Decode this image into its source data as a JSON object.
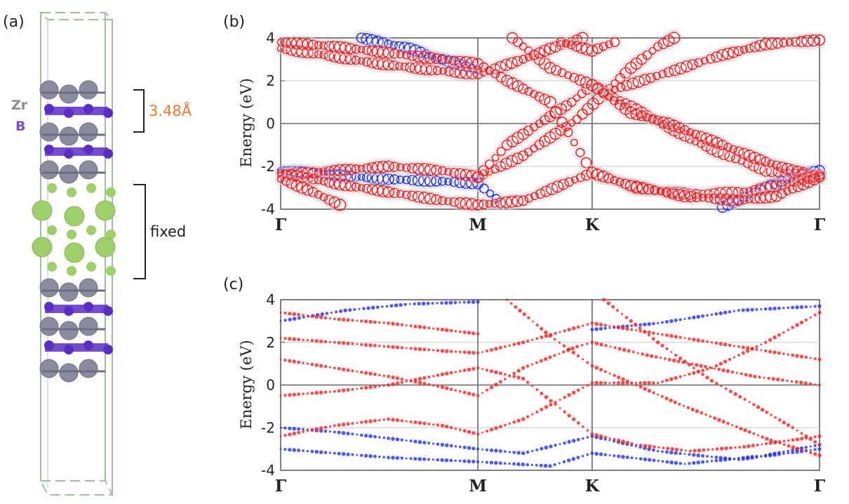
{
  "panel_a": {
    "label": "(a)",
    "atoms": [
      {
        "symbol": "Zr",
        "color": "#8a8a9a"
      },
      {
        "symbol": "B",
        "color": "#7a4fc4"
      }
    ],
    "dimension": {
      "text": "3.48Å",
      "color": "#f07a2a"
    },
    "fixed_label": "fixed",
    "colors": {
      "zr": "#8b8b9e",
      "b": "#5a2dc8",
      "substrate": "#9ecf6a",
      "cell": "#9cc29c"
    }
  },
  "chart_data": [
    {
      "panel": "(b)",
      "type": "scatter",
      "ylabel": "Energy (eV)",
      "ylim": [
        -4,
        4
      ],
      "y_ticks": [
        "4",
        "2",
        "0",
        "-2",
        "-4"
      ],
      "x_ticks": [
        "Γ",
        "M",
        "K",
        "Γ"
      ],
      "series_colors": {
        "spin_up": "#ff2020",
        "spin_down": "#2030ff",
        "halo": "#c8c8d2"
      },
      "bands_up": [
        {
          "name": "dirac-1",
          "points": [
            [
              0.0,
              -2.4
            ],
            [
              0.1,
              -2.2
            ],
            [
              0.2,
              -2.0
            ],
            [
              0.3,
              -2.2
            ],
            [
              0.366,
              -2.5
            ],
            [
              0.45,
              -1.5
            ],
            [
              0.55,
              0.2
            ],
            [
              0.6,
              1.4
            ],
            [
              0.65,
              2.6
            ],
            [
              0.7,
              3.6
            ],
            [
              0.73,
              4.0
            ]
          ]
        },
        {
          "name": "dirac-2",
          "points": [
            [
              0.366,
              -2.5
            ],
            [
              0.42,
              -1.0
            ],
            [
              0.48,
              0.0
            ],
            [
              0.54,
              1.0
            ],
            [
              0.578,
              1.8
            ],
            [
              0.65,
              0.8
            ],
            [
              0.72,
              -0.2
            ],
            [
              0.8,
              -1.2
            ],
            [
              0.9,
              -2.2
            ],
            [
              1.0,
              -2.5
            ]
          ]
        },
        {
          "name": "dirac-3",
          "points": [
            [
              0.43,
              4.0
            ],
            [
              0.5,
              2.6
            ],
            [
              0.578,
              1.8
            ],
            [
              0.65,
              0.5
            ],
            [
              0.72,
              0.0
            ],
            [
              0.8,
              -0.8
            ],
            [
              0.88,
              -1.6
            ],
            [
              0.95,
              -2.2
            ],
            [
              1.0,
              -2.4
            ]
          ]
        },
        {
          "name": "upper-1",
          "points": [
            [
              0.0,
              3.5
            ],
            [
              0.08,
              3.2
            ],
            [
              0.18,
              2.8
            ],
            [
              0.28,
              2.5
            ],
            [
              0.366,
              2.3
            ],
            [
              0.45,
              3.0
            ],
            [
              0.5,
              3.5
            ],
            [
              0.56,
              4.0
            ]
          ]
        },
        {
          "name": "upper-2",
          "points": [
            [
              0.0,
              3.8
            ],
            [
              0.1,
              3.6
            ],
            [
              0.2,
              3.3
            ],
            [
              0.3,
              3.0
            ],
            [
              0.366,
              2.8
            ],
            [
              0.42,
              2.0
            ],
            [
              0.5,
              1.0
            ],
            [
              0.578,
              -2.3
            ],
            [
              0.66,
              -3.0
            ],
            [
              0.76,
              -3.3
            ],
            [
              0.86,
              -3.2
            ],
            [
              0.94,
              -2.8
            ],
            [
              1.0,
              -2.4
            ]
          ]
        },
        {
          "name": "upper-3",
          "points": [
            [
              0.52,
              3.8
            ],
            [
              0.578,
              3.4
            ],
            [
              0.62,
              3.8
            ]
          ]
        },
        {
          "name": "upper-4",
          "points": [
            [
              0.62,
              1.6
            ],
            [
              0.72,
              2.4
            ],
            [
              0.82,
              3.2
            ],
            [
              0.9,
              3.7
            ],
            [
              1.0,
              3.9
            ]
          ]
        },
        {
          "name": "lower-1",
          "points": [
            [
              0.0,
              -2.3
            ],
            [
              0.1,
              -2.8
            ],
            [
              0.2,
              -3.2
            ],
            [
              0.3,
              -3.6
            ],
            [
              0.366,
              -3.8
            ],
            [
              0.45,
              -3.6
            ],
            [
              0.578,
              -2.3
            ],
            [
              0.65,
              -2.9
            ],
            [
              0.75,
              -3.4
            ],
            [
              0.85,
              -3.6
            ],
            [
              0.92,
              -3.4
            ],
            [
              1.0,
              -2.5
            ]
          ]
        },
        {
          "name": "lower-2",
          "points": [
            [
              0.0,
              -2.6
            ],
            [
              0.06,
              -3.2
            ],
            [
              0.11,
              -3.8
            ]
          ]
        }
      ],
      "bands_down": [
        {
          "name": "d-1",
          "points": [
            [
              0.0,
              -2.2
            ],
            [
              0.1,
              -2.4
            ],
            [
              0.2,
              -2.6
            ],
            [
              0.3,
              -2.7
            ],
            [
              0.366,
              -2.8
            ],
            [
              0.4,
              -3.5
            ]
          ]
        },
        {
          "name": "d-2",
          "points": [
            [
              0.15,
              4.0
            ],
            [
              0.24,
              3.5
            ],
            [
              0.3,
              3.0
            ],
            [
              0.366,
              2.5
            ]
          ]
        },
        {
          "name": "d-3",
          "points": [
            [
              0.82,
              -3.9
            ],
            [
              0.88,
              -3.2
            ],
            [
              0.94,
              -2.6
            ],
            [
              1.0,
              -2.2
            ]
          ]
        }
      ]
    },
    {
      "panel": "(c)",
      "type": "scatter",
      "ylabel": "Energy (eV)",
      "ylim": [
        -4,
        4
      ],
      "y_ticks": [
        "4",
        "2",
        "0",
        "-2",
        "-4"
      ],
      "x_ticks": [
        "Γ",
        "M",
        "K",
        "Γ"
      ],
      "series_colors": {
        "spin_up": "#ff2020",
        "spin_down": "#2030ff",
        "halo": "#c8c8d2"
      },
      "bands_up": [
        {
          "name": "c-1",
          "points": [
            [
              0.0,
              3.4
            ],
            [
              0.1,
              3.1
            ],
            [
              0.2,
              2.9
            ],
            [
              0.3,
              2.6
            ],
            [
              0.366,
              2.4
            ]
          ]
        },
        {
          "name": "c-2",
          "points": [
            [
              0.0,
              -2.4
            ],
            [
              0.1,
              -1.9
            ],
            [
              0.2,
              -1.6
            ],
            [
              0.3,
              -1.9
            ],
            [
              0.366,
              -2.3
            ],
            [
              0.45,
              -1.6
            ],
            [
              0.578,
              0.1
            ],
            [
              0.7,
              0.1
            ],
            [
              0.8,
              0.8
            ],
            [
              0.9,
              2.0
            ],
            [
              1.0,
              3.4
            ]
          ]
        },
        {
          "name": "c-3",
          "points": [
            [
              0.0,
              -0.5
            ],
            [
              0.1,
              -0.3
            ],
            [
              0.2,
              0.0
            ],
            [
              0.3,
              0.5
            ],
            [
              0.366,
              0.8
            ],
            [
              0.45,
              0.3
            ],
            [
              0.578,
              -2.3
            ],
            [
              0.66,
              -2.8
            ],
            [
              0.76,
              -3.1
            ],
            [
              0.86,
              -2.9
            ],
            [
              1.0,
              -2.4
            ]
          ]
        },
        {
          "name": "c-4",
          "points": [
            [
              0.0,
              1.2
            ],
            [
              0.1,
              0.8
            ],
            [
              0.2,
              0.4
            ],
            [
              0.3,
              -0.1
            ],
            [
              0.366,
              -0.5
            ],
            [
              0.45,
              0.8
            ],
            [
              0.55,
              1.8
            ],
            [
              0.578,
              2.0
            ],
            [
              0.68,
              1.4
            ],
            [
              0.78,
              0.9
            ],
            [
              0.88,
              0.4
            ],
            [
              1.0,
              0.0
            ]
          ]
        },
        {
          "name": "c-5",
          "points": [
            [
              0.0,
              2.2
            ],
            [
              0.1,
              2.0
            ],
            [
              0.2,
              1.8
            ],
            [
              0.3,
              1.6
            ],
            [
              0.366,
              1.5
            ],
            [
              0.45,
              2.0
            ],
            [
              0.578,
              2.9
            ],
            [
              0.7,
              2.4
            ],
            [
              0.85,
              1.8
            ],
            [
              1.0,
              1.2
            ]
          ]
        },
        {
          "name": "c-6",
          "points": [
            [
              0.42,
              4.0
            ],
            [
              0.5,
              2.3
            ],
            [
              0.578,
              0.9
            ],
            [
              0.66,
              0.0
            ],
            [
              0.74,
              -0.9
            ],
            [
              0.83,
              -1.8
            ],
            [
              0.91,
              -2.6
            ],
            [
              1.0,
              -3.3
            ]
          ]
        },
        {
          "name": "c-7",
          "points": [
            [
              0.6,
              4.0
            ],
            [
              0.7,
              2.0
            ],
            [
              0.8,
              0.2
            ],
            [
              0.87,
              -0.8
            ],
            [
              0.95,
              -2.0
            ],
            [
              1.0,
              -2.8
            ]
          ]
        }
      ],
      "bands_down": [
        {
          "name": "cd-1",
          "points": [
            [
              0.0,
              -2.0
            ],
            [
              0.1,
              -2.2
            ],
            [
              0.2,
              -2.5
            ],
            [
              0.3,
              -2.8
            ],
            [
              0.366,
              -3.0
            ],
            [
              0.45,
              -3.2
            ],
            [
              0.578,
              -2.4
            ],
            [
              0.7,
              -3.1
            ],
            [
              0.85,
              -3.5
            ],
            [
              1.0,
              -3.0
            ]
          ]
        },
        {
          "name": "cd-2",
          "points": [
            [
              0.0,
              -3.0
            ],
            [
              0.1,
              -3.2
            ],
            [
              0.2,
              -3.4
            ],
            [
              0.366,
              -3.6
            ],
            [
              0.5,
              -3.8
            ],
            [
              0.578,
              -3.2
            ],
            [
              0.75,
              -3.7
            ],
            [
              0.9,
              -3.3
            ],
            [
              1.0,
              -2.8
            ]
          ]
        },
        {
          "name": "cd-3",
          "points": [
            [
              0.0,
              3.0
            ],
            [
              0.12,
              3.5
            ],
            [
              0.24,
              3.8
            ],
            [
              0.366,
              3.9
            ]
          ]
        },
        {
          "name": "cd-4",
          "points": [
            [
              0.578,
              2.6
            ],
            [
              0.7,
              2.9
            ],
            [
              0.85,
              3.5
            ],
            [
              1.0,
              3.7
            ]
          ]
        }
      ]
    }
  ]
}
